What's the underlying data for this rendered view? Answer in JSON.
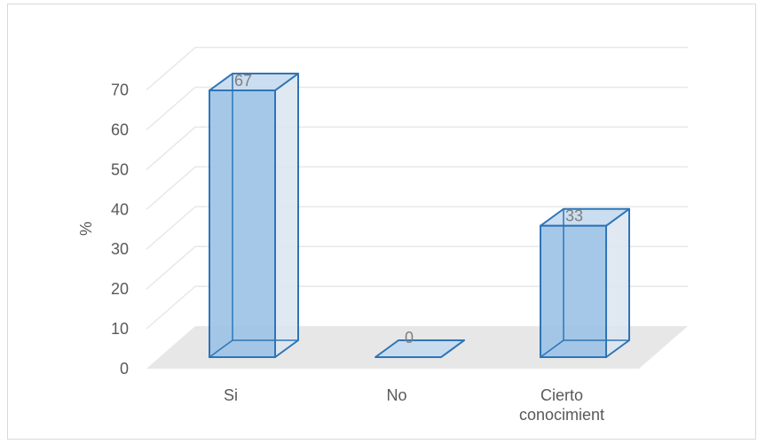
{
  "chart_data": {
    "type": "bar",
    "title": "",
    "xlabel": "",
    "ylabel": "%",
    "ylim": [
      0,
      70
    ],
    "yticks": [
      0,
      10,
      20,
      30,
      40,
      50,
      60,
      70
    ],
    "categories": [
      "Si",
      "No",
      "Cierto conocimient"
    ],
    "category_lines": [
      [
        "Si"
      ],
      [
        "No"
      ],
      [
        "Cierto",
        "conocimient"
      ]
    ],
    "values": [
      67,
      0,
      33
    ],
    "data_labels": [
      "67",
      "0",
      "33"
    ],
    "grid": true,
    "legend": "none",
    "style": "3d-column",
    "colors": {
      "bar_fill": "#9dc3e6",
      "bar_side": "#dbe5f0",
      "bar_top": "#c5d9ee",
      "bar_edge": "#2e75b6",
      "floor": "#e7e7e7",
      "grid": "#e8e8e8",
      "text": "#595959",
      "label": "#7f7f7f"
    }
  }
}
